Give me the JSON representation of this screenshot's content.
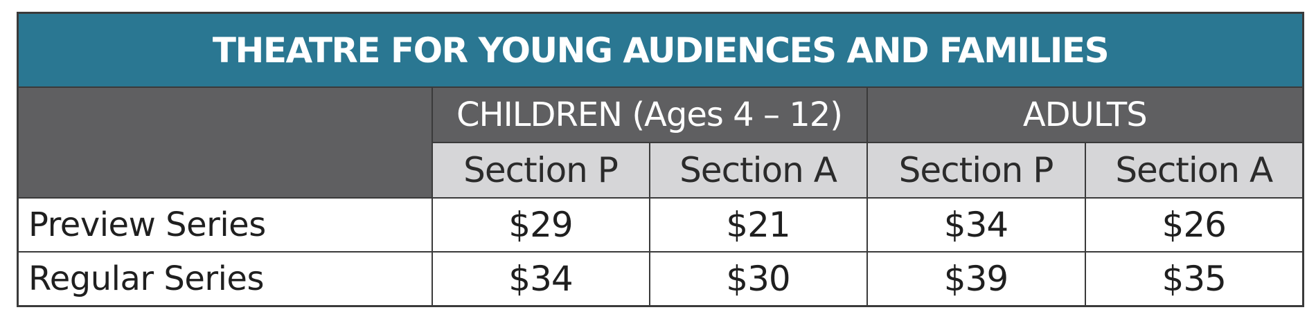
{
  "table": {
    "title": "THEATRE FOR YOUNG AUDIENCES AND FAMILIES",
    "groups": [
      {
        "label": "CHILDREN (Ages 4 – 12)"
      },
      {
        "label": "ADULTS"
      }
    ],
    "subheaders": [
      "Section P",
      "Section A",
      "Section P",
      "Section A"
    ],
    "rows": [
      {
        "label": "Preview Series",
        "values": [
          "$29",
          "$21",
          "$34",
          "$26"
        ]
      },
      {
        "label": "Regular Series",
        "values": [
          "$34",
          "$30",
          "$39",
          "$35"
        ]
      }
    ],
    "colors": {
      "title_bg": "#2a7792",
      "group_bg": "#5f5f61",
      "subheader_bg": "#d6d6d8",
      "border": "#3a3a3a"
    }
  }
}
